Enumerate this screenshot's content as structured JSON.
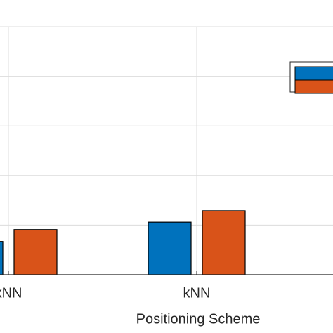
{
  "chart_data": {
    "type": "bar",
    "xlabel": "Positioning Scheme",
    "categories": [
      "kNN",
      "kNN"
    ],
    "series": [
      {
        "color": "#0072bd",
        "values": [
          0.67,
          1.06
        ]
      },
      {
        "color": "#d95319",
        "values": [
          0.91,
          1.29
        ]
      }
    ],
    "ylim": [
      0,
      5
    ],
    "yticks": [
      0,
      1,
      2,
      3,
      4,
      5
    ],
    "grid": true
  }
}
